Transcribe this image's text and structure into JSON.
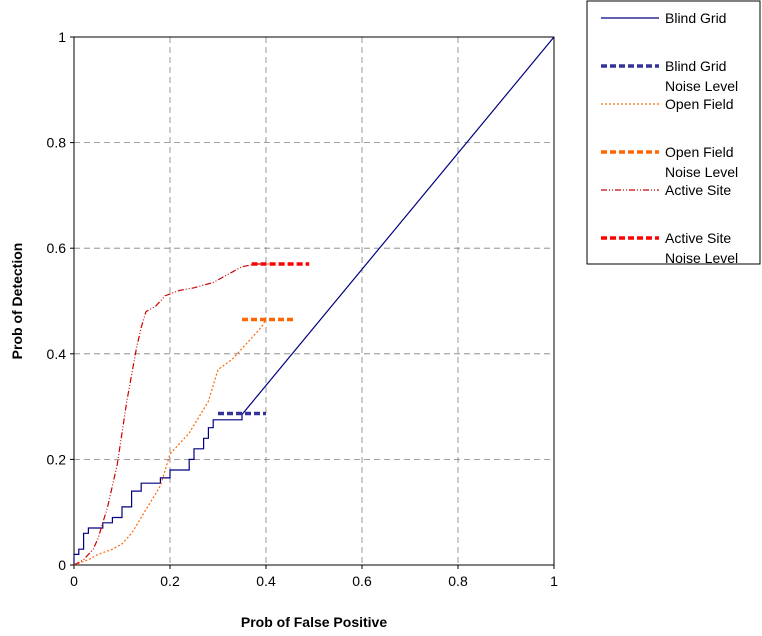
{
  "chart_data": {
    "type": "line",
    "xlabel": "Prob of False Positive",
    "ylabel": "Prob of Detection",
    "xlim": [
      0,
      1
    ],
    "ylim": [
      0,
      1
    ],
    "x_ticks": [
      "0",
      "0.2",
      "0.4",
      "0.6",
      "0.8",
      "1"
    ],
    "y_ticks": [
      "0",
      "0.2",
      "0.4",
      "0.6",
      "0.8",
      "1"
    ],
    "grid": true,
    "legend_position": "top-right, outside plot",
    "series": [
      {
        "name": "Blind Grid",
        "color": "#000080",
        "style": "solid",
        "points": [
          [
            0,
            0
          ],
          [
            0,
            0.02
          ],
          [
            0.01,
            0.02
          ],
          [
            0.01,
            0.03
          ],
          [
            0.02,
            0.03
          ],
          [
            0.02,
            0.06
          ],
          [
            0.03,
            0.06
          ],
          [
            0.03,
            0.07
          ],
          [
            0.06,
            0.07
          ],
          [
            0.06,
            0.08
          ],
          [
            0.08,
            0.08
          ],
          [
            0.08,
            0.09
          ],
          [
            0.1,
            0.09
          ],
          [
            0.1,
            0.11
          ],
          [
            0.12,
            0.11
          ],
          [
            0.12,
            0.14
          ],
          [
            0.14,
            0.14
          ],
          [
            0.14,
            0.155
          ],
          [
            0.18,
            0.155
          ],
          [
            0.18,
            0.165
          ],
          [
            0.2,
            0.165
          ],
          [
            0.2,
            0.18
          ],
          [
            0.24,
            0.18
          ],
          [
            0.24,
            0.2
          ],
          [
            0.25,
            0.2
          ],
          [
            0.25,
            0.22
          ],
          [
            0.27,
            0.22
          ],
          [
            0.27,
            0.24
          ],
          [
            0.28,
            0.24
          ],
          [
            0.28,
            0.26
          ],
          [
            0.29,
            0.26
          ],
          [
            0.29,
            0.275
          ],
          [
            0.35,
            0.275
          ],
          [
            0.35,
            0.285
          ],
          [
            1,
            1
          ]
        ]
      },
      {
        "name": "Blind Grid Noise Level",
        "color": "#333399",
        "style": "dashed",
        "points": [
          [
            0.3,
            0.287
          ],
          [
            0.4,
            0.287
          ]
        ]
      },
      {
        "name": "Open Field",
        "color": "#FF6600",
        "style": "dotted",
        "points": [
          [
            0,
            0
          ],
          [
            0.03,
            0.01
          ],
          [
            0.05,
            0.02
          ],
          [
            0.08,
            0.03
          ],
          [
            0.1,
            0.04
          ],
          [
            0.12,
            0.06
          ],
          [
            0.14,
            0.09
          ],
          [
            0.16,
            0.12
          ],
          [
            0.18,
            0.15
          ],
          [
            0.19,
            0.18
          ],
          [
            0.2,
            0.21
          ],
          [
            0.22,
            0.23
          ],
          [
            0.24,
            0.25
          ],
          [
            0.26,
            0.28
          ],
          [
            0.28,
            0.31
          ],
          [
            0.29,
            0.34
          ],
          [
            0.3,
            0.37
          ],
          [
            0.33,
            0.39
          ],
          [
            0.35,
            0.41
          ],
          [
            0.37,
            0.43
          ],
          [
            0.39,
            0.45
          ],
          [
            0.4,
            0.465
          ]
        ]
      },
      {
        "name": "Open Field Noise Level",
        "color": "#FF6600",
        "style": "dashed",
        "points": [
          [
            0.35,
            0.465
          ],
          [
            0.46,
            0.465
          ]
        ]
      },
      {
        "name": "Active Site",
        "color": "#CC0000",
        "style": "dashdotdot",
        "points": [
          [
            0,
            0
          ],
          [
            0.02,
            0.01
          ],
          [
            0.04,
            0.03
          ],
          [
            0.05,
            0.05
          ],
          [
            0.06,
            0.08
          ],
          [
            0.07,
            0.11
          ],
          [
            0.08,
            0.15
          ],
          [
            0.09,
            0.19
          ],
          [
            0.1,
            0.25
          ],
          [
            0.11,
            0.31
          ],
          [
            0.12,
            0.36
          ],
          [
            0.13,
            0.41
          ],
          [
            0.14,
            0.45
          ],
          [
            0.15,
            0.48
          ],
          [
            0.17,
            0.49
          ],
          [
            0.19,
            0.51
          ],
          [
            0.22,
            0.52
          ],
          [
            0.25,
            0.525
          ],
          [
            0.29,
            0.535
          ],
          [
            0.32,
            0.55
          ],
          [
            0.35,
            0.565
          ],
          [
            0.38,
            0.57
          ],
          [
            0.42,
            0.57
          ]
        ]
      },
      {
        "name": "Active Site Noise Level",
        "color": "#FF0000",
        "style": "dashed",
        "points": [
          [
            0.37,
            0.57
          ],
          [
            0.49,
            0.57
          ]
        ]
      }
    ],
    "legend": [
      {
        "lines": [
          "Blind Grid"
        ],
        "series": 0
      },
      {
        "lines": [
          "Blind Grid",
          "Noise Level"
        ],
        "series": 1
      },
      {
        "lines": [
          "Open Field"
        ],
        "series": 2
      },
      {
        "lines": [
          "Open Field",
          "Noise Level"
        ],
        "series": 3
      },
      {
        "lines": [
          "Active Site"
        ],
        "series": 4
      },
      {
        "lines": [
          "Active Site",
          "Noise Level"
        ],
        "series": 5
      }
    ]
  }
}
